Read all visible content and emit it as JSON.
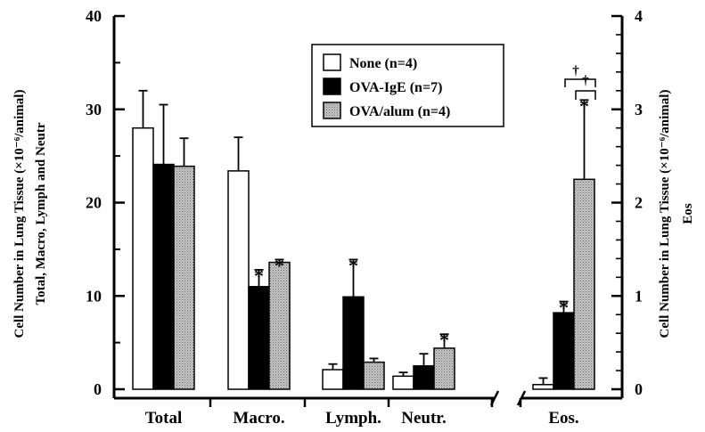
{
  "chart_data": {
    "type": "bar",
    "title": "",
    "left_axis": {
      "label_line1": "Cell Number in Lung Tissue (×10⁻⁶/animal)",
      "label_line2": "Total, Macro, Lymph and Neutr",
      "ylim": [
        0,
        40
      ],
      "ticks": [
        "0",
        "10",
        "20",
        "30",
        "40"
      ]
    },
    "right_axis": {
      "label_line1": "Cell Number in Lung Tissue (×10⁻⁶/animal)",
      "label_line2": "Eos",
      "ylim": [
        0,
        4
      ],
      "ticks": [
        "0",
        "1",
        "2",
        "3",
        "4"
      ]
    },
    "categories": [
      "Total",
      "Macro.",
      "Lymph.",
      "Neutr.",
      "Eos."
    ],
    "category_axis": [
      "left",
      "left",
      "left",
      "left",
      "right"
    ],
    "series": [
      {
        "name": "None (n=4)",
        "fill": "#ffffff",
        "values": [
          28.0,
          23.4,
          2.1,
          1.4,
          0.05
        ],
        "errors": [
          4.0,
          3.6,
          0.6,
          0.4,
          0.07
        ],
        "significance": [
          "",
          "",
          "",
          "",
          ""
        ]
      },
      {
        "name": "OVA-IgE (n=7)",
        "fill": "#000000",
        "values": [
          24.1,
          11.0,
          9.9,
          2.5,
          0.82
        ],
        "errors": [
          6.4,
          1.8,
          4.0,
          1.3,
          0.12
        ],
        "significance": [
          "",
          "*",
          "*",
          "",
          "*"
        ]
      },
      {
        "name": "OVA/alum (n=4)",
        "fill": "#b8b8b8",
        "values": [
          23.9,
          13.6,
          2.9,
          4.4,
          2.25
        ],
        "errors": [
          3.0,
          0.3,
          0.4,
          1.5,
          0.85
        ],
        "significance": [
          "",
          "*",
          "",
          "*",
          "*"
        ]
      }
    ],
    "comparison_marks": [
      "†",
      "†"
    ],
    "legend_position": "top-center",
    "grid": false
  }
}
